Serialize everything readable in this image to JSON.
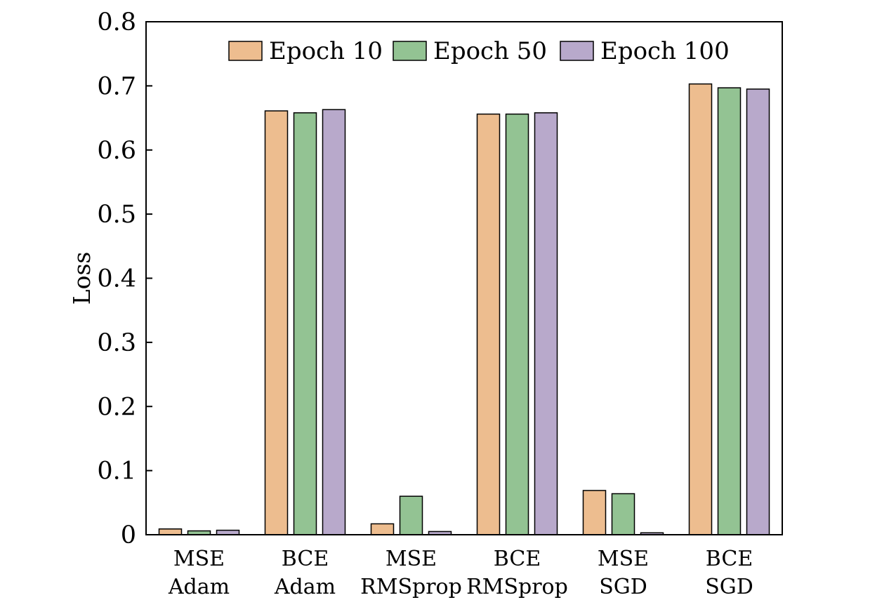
{
  "chart_data": {
    "type": "bar",
    "title": "",
    "xlabel": "",
    "ylabel": "Loss",
    "ylim": [
      0,
      0.8
    ],
    "yticks": [
      "0",
      "0.1",
      "0.2",
      "0.3",
      "0.4",
      "0.5",
      "0.6",
      "0.7",
      "0.8"
    ],
    "categories": [
      [
        "MSE",
        "Adam"
      ],
      [
        "BCE",
        "Adam"
      ],
      [
        "MSE",
        "RMSprop"
      ],
      [
        "BCE",
        "RMSprop"
      ],
      [
        "MSE",
        "SGD"
      ],
      [
        "BCE",
        "SGD"
      ]
    ],
    "series": [
      {
        "name": "Epoch 10",
        "color": "#EDBD8F",
        "values": [
          0.009,
          0.661,
          0.017,
          0.656,
          0.069,
          0.703
        ]
      },
      {
        "name": "Epoch 50",
        "color": "#93C393",
        "values": [
          0.006,
          0.658,
          0.06,
          0.656,
          0.064,
          0.697
        ]
      },
      {
        "name": "Epoch 100",
        "color": "#B8A9CB",
        "values": [
          0.007,
          0.663,
          0.005,
          0.658,
          0.003,
          0.695
        ]
      }
    ],
    "legend_position": "top-right",
    "grid": false
  }
}
